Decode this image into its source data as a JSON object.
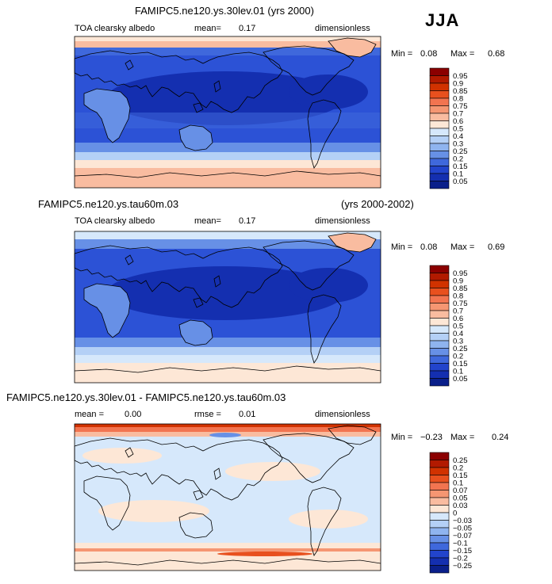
{
  "season": "JJA",
  "panels": [
    {
      "title": "FAMIPC5.ne120.ys.30lev.01 (yrs 2000)",
      "title_right": "",
      "variable": "TOA clearsky albedo",
      "stat1_label": "mean=",
      "stat1_value": "0.17",
      "stat2_label": "",
      "stat2_value": "",
      "units": "dimensionless",
      "min_label": "Min =",
      "min_value": "0.08",
      "max_label": "Max =",
      "max_value": "0.68",
      "levels": [
        "0.95",
        "0.9",
        "0.85",
        "0.8",
        "0.75",
        "0.7",
        "0.6",
        "0.5",
        "0.4",
        "0.3",
        "0.25",
        "0.2",
        "0.15",
        "0.1",
        "0.05"
      ],
      "colors": [
        "#8b0000",
        "#b21a00",
        "#d13200",
        "#e8501e",
        "#f27450",
        "#f59672",
        "#f9bca0",
        "#fde7d6",
        "#d6e8fb",
        "#b4d0f6",
        "#8fb4ef",
        "#6790e6",
        "#3f68dc",
        "#2244cc",
        "#142fb0",
        "#0a1f8a"
      ]
    },
    {
      "title": "FAMIPC5.ne120.ys.tau60m.03",
      "title_right": "(yrs 2000-2002)",
      "variable": "TOA clearsky albedo",
      "stat1_label": "mean=",
      "stat1_value": "0.17",
      "stat2_label": "",
      "stat2_value": "",
      "units": "dimensionless",
      "min_label": "Min =",
      "min_value": "0.08",
      "max_label": "Max =",
      "max_value": "0.69",
      "levels": [
        "0.95",
        "0.9",
        "0.85",
        "0.8",
        "0.75",
        "0.7",
        "0.6",
        "0.5",
        "0.4",
        "0.3",
        "0.25",
        "0.2",
        "0.15",
        "0.1",
        "0.05"
      ],
      "colors": [
        "#8b0000",
        "#b21a00",
        "#d13200",
        "#e8501e",
        "#f27450",
        "#f59672",
        "#f9bca0",
        "#fde7d6",
        "#d6e8fb",
        "#b4d0f6",
        "#8fb4ef",
        "#6790e6",
        "#3f68dc",
        "#2244cc",
        "#142fb0",
        "#0a1f8a"
      ]
    },
    {
      "title": "FAMIPC5.ne120.ys.30lev.01 - FAMIPC5.ne120.ys.tau60m.03",
      "title_right": "",
      "variable": "",
      "stat1_label": "mean =",
      "stat1_value": "0.00",
      "stat2_label": "rmse =",
      "stat2_value": "0.01",
      "units": "dimensionless",
      "min_label": "Min =",
      "min_value": "−0.23",
      "max_label": "Max =",
      "max_value": "0.24",
      "levels": [
        "0.25",
        "0.2",
        "0.15",
        "0.1",
        "0.07",
        "0.05",
        "0.03",
        "0",
        "−0.03",
        "−0.05",
        "−0.07",
        "−0.1",
        "−0.15",
        "−0.2",
        "−0.25"
      ],
      "colors": [
        "#8b0000",
        "#b21a00",
        "#d13200",
        "#e8501e",
        "#f27450",
        "#f59672",
        "#f9bca0",
        "#fde7d6",
        "#d6e8fb",
        "#b4d0f6",
        "#8fb4ef",
        "#6790e6",
        "#3f68dc",
        "#2244cc",
        "#142fb0",
        "#0a1f8a"
      ]
    }
  ]
}
